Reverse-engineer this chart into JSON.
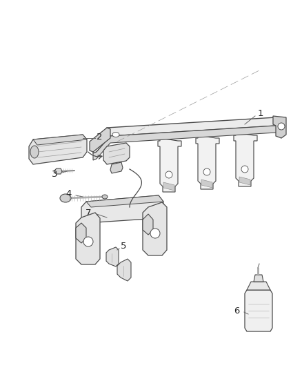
{
  "background_color": "#ffffff",
  "line_color": "#4a4a4a",
  "label_color": "#222222",
  "fig_width": 4.38,
  "fig_height": 5.33,
  "dpi": 100
}
